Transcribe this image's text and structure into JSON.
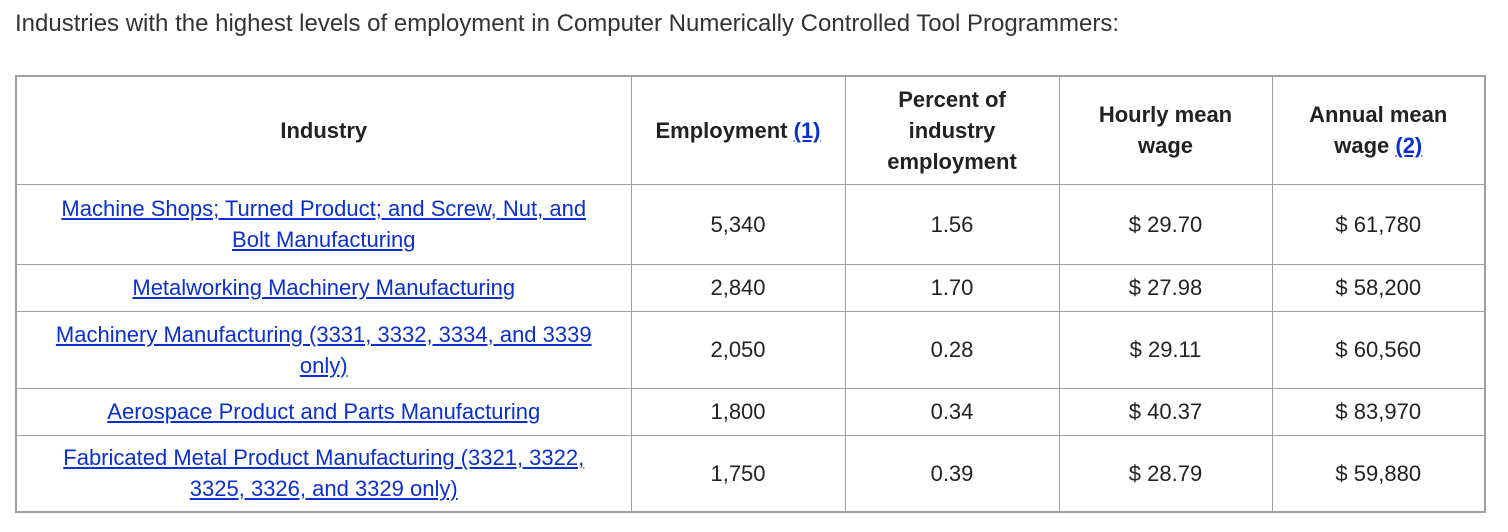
{
  "header": {
    "title": "Industries with the highest levels of employment in Computer Numerically Controlled Tool Programmers:"
  },
  "table": {
    "header": [
      {
        "text": "Industry"
      },
      {
        "text": "Employment",
        "note": "(1)"
      },
      {
        "text": "Percent of industry employment"
      },
      {
        "text": "Hourly mean wage"
      },
      {
        "text": "Annual mean wage",
        "note": "(2)"
      }
    ],
    "rows": [
      [
        "Machine Shops; Turned Product; and Screw, Nut, and Bolt Manufacturing",
        "5,340",
        "1.56",
        "$ 29.70",
        "$ 61,780"
      ],
      [
        "Metalworking Machinery Manufacturing",
        "2,840",
        "1.70",
        "$ 27.98",
        "$ 58,200"
      ],
      [
        "Machinery Manufacturing (3331, 3332, 3334, and 3339 only)",
        "2,050",
        "0.28",
        "$ 29.11",
        "$ 60,560"
      ],
      [
        "Aerospace Product and Parts Manufacturing",
        "1,800",
        "0.34",
        "$ 40.37",
        "$ 83,970"
      ],
      [
        "Fabricated Metal Product Manufacturing (3321, 3322, 3325, 3326, and 3329 only)",
        "1,750",
        "0.39",
        "$ 28.79",
        "$ 59,880"
      ]
    ]
  }
}
